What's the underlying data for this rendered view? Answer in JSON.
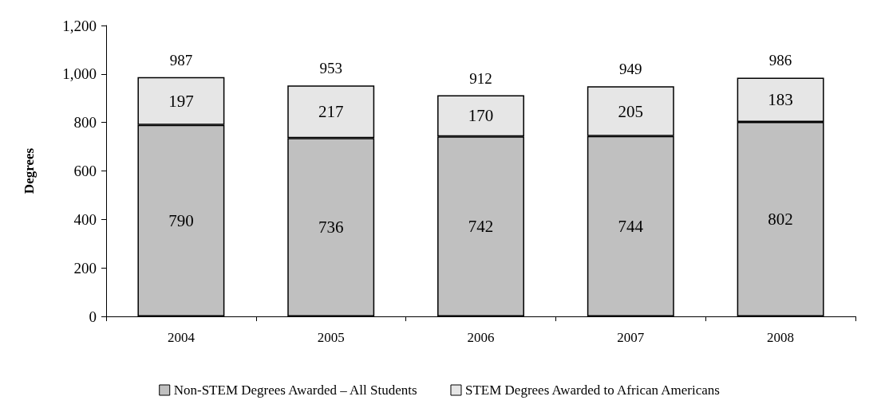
{
  "chart_data": {
    "type": "bar",
    "stacked": true,
    "ylabel": "Degrees",
    "categories": [
      "2004",
      "2005",
      "2006",
      "2007",
      "2008"
    ],
    "series": [
      {
        "name": "Non-STEM Degrees Awarded – All Students",
        "color": "#c0c0c0",
        "values": [
          790,
          736,
          742,
          744,
          802
        ]
      },
      {
        "name": "STEM Degrees Awarded to African Americans",
        "color": "#e6e6e6",
        "values": [
          197,
          217,
          170,
          205,
          183
        ]
      }
    ],
    "data_labels": true,
    "totals": [
      "987",
      "953",
      "912",
      "949",
      "986"
    ],
    "ylim": [
      0,
      1200
    ],
    "yticks": [
      0,
      200,
      400,
      600,
      800,
      {
        "value": 1000,
        "label": "1,000"
      },
      {
        "value": 1200,
        "label": "1,200"
      }
    ],
    "grid": false,
    "legend": "bottom"
  }
}
